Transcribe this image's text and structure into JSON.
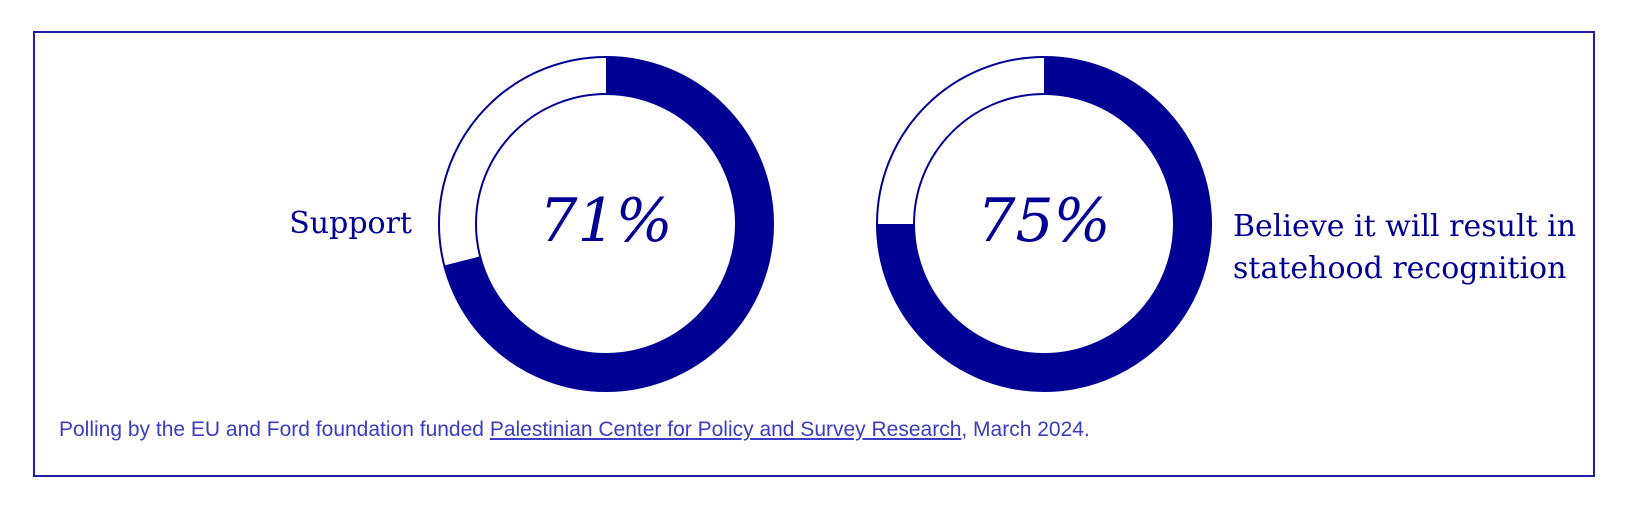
{
  "chart_data": {
    "type": "donut",
    "charts": [
      {
        "value": 71,
        "value_label": "71%",
        "label": "Support",
        "label_position": "left"
      },
      {
        "value": 75,
        "value_label": "75%",
        "label_lines": [
          "Believe it will result in",
          "statehood recognition"
        ],
        "label_position": "right"
      }
    ],
    "colors": {
      "fill": "#000095",
      "background": "#ffffff",
      "frame": "#1e1ea8",
      "caption": "#3c3cc4"
    }
  },
  "caption": {
    "prefix": "Polling by the EU and Ford foundation funded ",
    "link_text": "Palestinian Center for Policy and Survey Research",
    "suffix": ", March 2024."
  }
}
